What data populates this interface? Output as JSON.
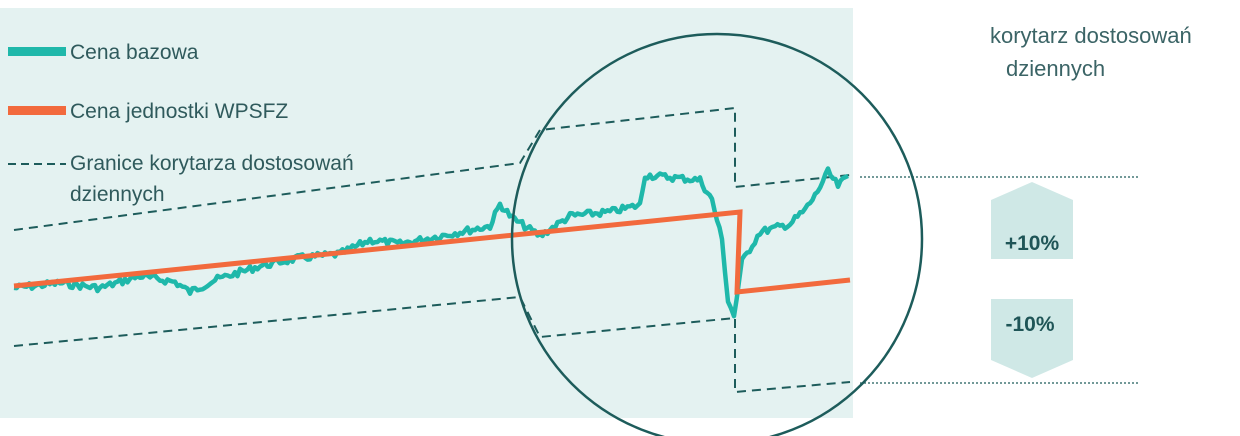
{
  "legend": {
    "base_price": "Cena bazowa",
    "unit_price": "Cena jednostki WPSFZ",
    "bounds_line1": "Granice korytarza dostosowań",
    "bounds_line2": "dziennych"
  },
  "side_label": {
    "line1": "korytarz dostosowań",
    "line2": "dziennych"
  },
  "badges": {
    "upper": "+10%",
    "lower": "-10%"
  },
  "colors": {
    "base_price": "#1fb8aa",
    "unit_price": "#f26a3d",
    "bounds": "#1d5c5b",
    "panel": "#e4f2f1",
    "badge": "#cfe8e6",
    "circle": "#1d5c5b"
  }
}
